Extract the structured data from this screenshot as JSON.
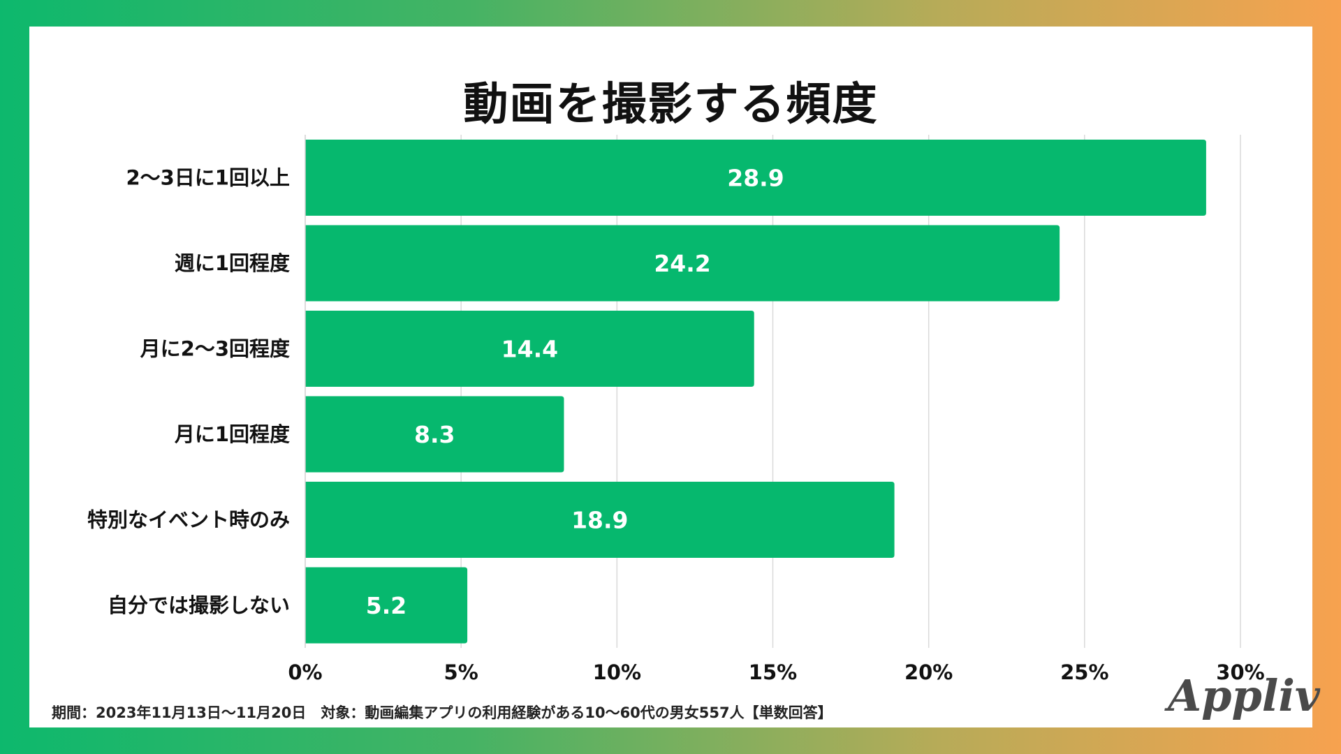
{
  "chart_data": {
    "type": "bar",
    "orientation": "horizontal",
    "title": "動画を撮影する頻度",
    "categories": [
      "2〜3日に1回以上",
      "週に1回程度",
      "月に2〜3回程度",
      "月に1回程度",
      "特別なイベント時のみ",
      "自分では撮影しない"
    ],
    "values": [
      28.9,
      24.2,
      14.4,
      8.3,
      18.9,
      5.2
    ],
    "value_labels": [
      "28.9",
      "24.2",
      "14.4",
      "8.3",
      "18.9",
      "5.2"
    ],
    "xlim": [
      0,
      30
    ],
    "xticks": [
      0,
      5,
      10,
      15,
      20,
      25,
      30
    ],
    "xtick_labels": [
      "0%",
      "5%",
      "10%",
      "15%",
      "20%",
      "25%",
      "30%"
    ],
    "xlabel": "",
    "ylabel": "",
    "grid": true,
    "bar_color": "#06b86e",
    "grid_color": "#d9d9d9"
  },
  "footer": {
    "text": "期間：2023年11月13日〜11月20日　対象：動画編集アプリの利用経験がある10〜60代の男女557人【単数回答】"
  },
  "logo": {
    "text": "Appliv"
  }
}
